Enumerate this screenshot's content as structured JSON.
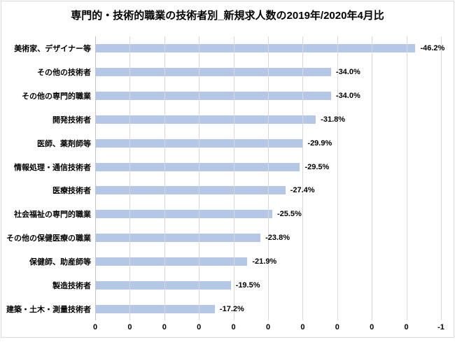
{
  "chart_data": {
    "type": "bar",
    "orientation": "horizontal",
    "title": "専門的・技術的職業の技術者別_新規求人数の2019年/2020年4月比",
    "bar_color": "#b4c7e7",
    "gridline_color": "#d9d9d9",
    "legend": "none",
    "grid": "vertical-on",
    "categories": [
      "美術家、デザイナー等",
      "その他の技術者",
      "その他の専門的職業",
      "開発技術者",
      "医師、薬剤師等",
      "情報処理・通信技術者",
      "医療技術者",
      "社会福祉の専門的職業",
      "その他の保健医療の職業",
      "保健師、助産師等",
      "製造技術者",
      "建築・土木・測量技術者"
    ],
    "values_pct": [
      -46.2,
      -34.0,
      -34.0,
      -31.8,
      -29.9,
      -29.5,
      -27.4,
      -25.5,
      -23.8,
      -21.9,
      -19.5,
      -17.2
    ],
    "rows": [
      {
        "label": "美術家、デザイナー等",
        "value": -46.2,
        "value_label": "-46.2%"
      },
      {
        "label": "その他の技術者",
        "value": -34.0,
        "value_label": "-34.0%"
      },
      {
        "label": "その他の専門的職業",
        "value": -34.0,
        "value_label": "-34.0%"
      },
      {
        "label": "開発技術者",
        "value": -31.8,
        "value_label": "-31.8%"
      },
      {
        "label": "医師、薬剤師等",
        "value": -29.9,
        "value_label": "-29.9%"
      },
      {
        "label": "情報処理・通信技術者",
        "value": -29.5,
        "value_label": "-29.5%"
      },
      {
        "label": "医療技術者",
        "value": -27.4,
        "value_label": "-27.4%"
      },
      {
        "label": "社会福祉の専門的職業",
        "value": -25.5,
        "value_label": "-25.5%"
      },
      {
        "label": "その他の保健医療の職業",
        "value": -23.8,
        "value_label": "-23.8%"
      },
      {
        "label": "保健師、助産師等",
        "value": -21.9,
        "value_label": "-21.9%"
      },
      {
        "label": "製造技術者",
        "value": -19.5,
        "value_label": "-19.5%"
      },
      {
        "label": "建築・土木・測量技術者",
        "value": -17.2,
        "value_label": "-17.2%"
      }
    ],
    "x_axis": {
      "min": 0,
      "max": -0.5,
      "tick_step": -0.05,
      "tick_labels": [
        "0",
        "0",
        "0",
        "0",
        "0",
        "0",
        "0",
        "0",
        "0",
        "0",
        "-1"
      ]
    }
  }
}
